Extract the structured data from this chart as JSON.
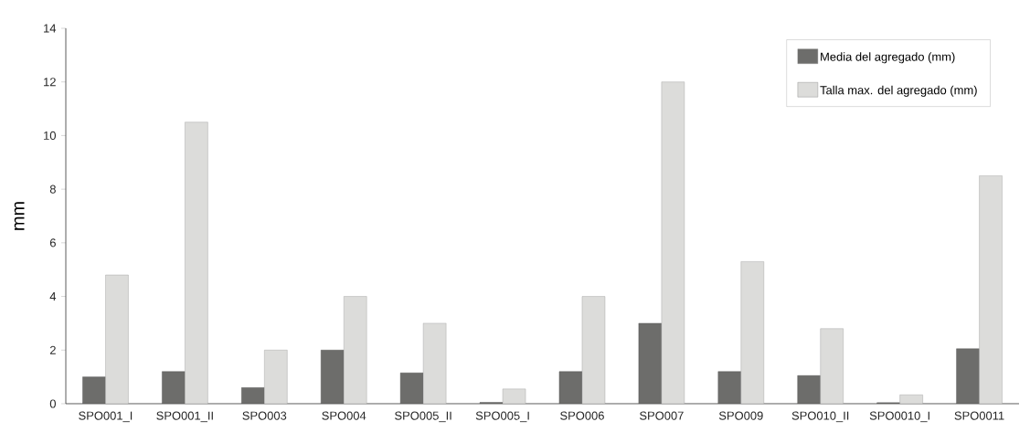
{
  "chart_data": {
    "type": "bar",
    "ylabel": "mm",
    "categories": [
      "SPO001_I",
      "SPO001_II",
      "SPO003",
      "SPO004",
      "SPO005_II",
      "SPO005_I",
      "SPO006",
      "SPO007",
      "SPO009",
      "SPO010_II",
      "SPO0010_I",
      "SPO0011"
    ],
    "series": [
      {
        "name": "Media del agregado (mm)",
        "color": "#6d6d6b",
        "values": [
          1.0,
          1.2,
          0.6,
          2.0,
          1.15,
          0.05,
          1.2,
          3.0,
          1.2,
          1.05,
          0.04,
          2.05
        ]
      },
      {
        "name": "Talla max. del agregado (mm)",
        "color": "#dcdcda",
        "values": [
          4.8,
          10.5,
          2.0,
          4.0,
          3.0,
          0.55,
          4.0,
          12.0,
          5.3,
          2.8,
          0.33,
          8.5
        ]
      }
    ],
    "ylim": [
      0,
      14
    ],
    "yticks": [
      0,
      2,
      4,
      6,
      8,
      10,
      12,
      14
    ],
    "legend": "top right",
    "grid": false
  }
}
